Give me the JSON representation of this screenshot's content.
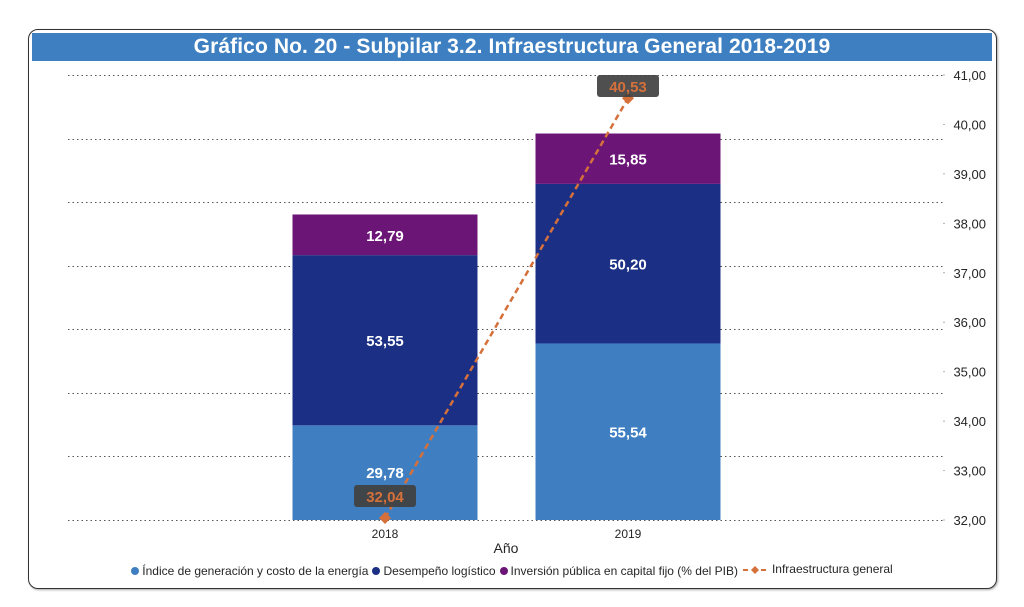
{
  "chart_data": {
    "type": "bar",
    "subtype": "stacked-bar-with-line-secondary-axis",
    "title": "Gráfico No. 20 - Subpilar 3.2. Infraestructura General 2018-2019",
    "xlabel": "Año",
    "ylabel": "",
    "categories": [
      "2018",
      "2019"
    ],
    "series": [
      {
        "name": "Índice de generación y costo de la energía",
        "kind": "bar",
        "color": "#3f7fc1",
        "values": [
          29.78,
          55.54
        ],
        "labels": [
          "29,78",
          "55,54"
        ]
      },
      {
        "name": "Desempeño logístico",
        "kind": "bar",
        "color": "#1b2f85",
        "values": [
          53.55,
          50.2
        ],
        "labels": [
          "53,55",
          "50,20"
        ]
      },
      {
        "name": "Inversión pública en capital fijo  (% del PIB)",
        "kind": "bar",
        "color": "#6b1677",
        "values": [
          12.79,
          15.85
        ],
        "labels": [
          "12,79",
          "15,85"
        ]
      },
      {
        "name": "Infraestructura general",
        "kind": "line",
        "axis": "secondary",
        "color": "#d5703b",
        "values": [
          32.04,
          40.53
        ],
        "labels": [
          "32,04",
          "40,53"
        ]
      }
    ],
    "primary_axis": {
      "visible": false,
      "ylim": [
        0,
        140
      ],
      "step": 20,
      "grid": true
    },
    "secondary_axis": {
      "visible": true,
      "position": "right",
      "ylim": [
        32,
        41
      ],
      "ticks": [
        32,
        33,
        34,
        35,
        36,
        37,
        38,
        39,
        40,
        41
      ],
      "tick_labels": [
        "32,00",
        "33,00",
        "34,00",
        "35,00",
        "36,00",
        "37,00",
        "38,00",
        "39,00",
        "40,00",
        "41,00"
      ]
    },
    "legend": {
      "placement": "bottom"
    },
    "line_label_bg": "#404040"
  }
}
